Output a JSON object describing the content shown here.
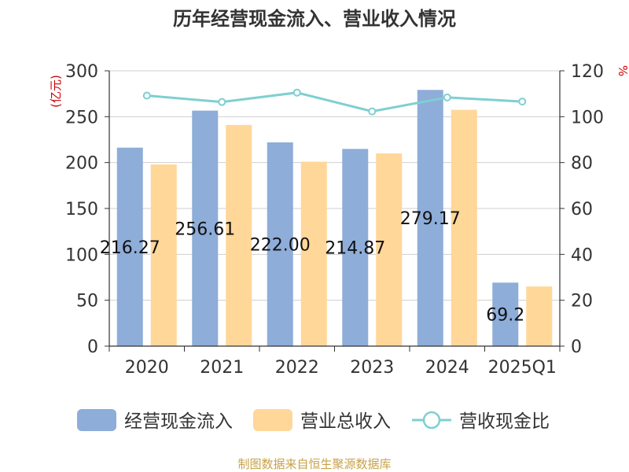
{
  "chart_data": {
    "type": "bar",
    "title": "历年经营现金流入、营业收入情况",
    "left_unit": "(亿元)",
    "right_unit": "%",
    "categories": [
      "2020",
      "2021",
      "2022",
      "2023",
      "2024",
      "2025Q1"
    ],
    "ylim": [
      0,
      300
    ],
    "yticks": [
      0,
      50,
      100,
      150,
      200,
      250,
      300
    ],
    "y2lim": [
      0,
      120
    ],
    "y2ticks": [
      0,
      20,
      40,
      60,
      80,
      100,
      120
    ],
    "grid": true,
    "legend_position": "bottom",
    "series": [
      {
        "name": "经营现金流入",
        "type": "bar",
        "axis": "left",
        "color": "#8eadd9",
        "values": [
          216.27,
          256.61,
          222.0,
          214.87,
          279.17,
          69.2
        ],
        "labels": [
          "216.27",
          "256.61",
          "222.00",
          "214.87",
          "279.17",
          "69.2"
        ]
      },
      {
        "name": "营业总收入",
        "type": "bar",
        "axis": "left",
        "color": "#ffd799",
        "values": [
          198,
          241,
          201,
          210,
          257.5,
          65
        ]
      },
      {
        "name": "营收现金比",
        "type": "line",
        "axis": "right",
        "color": "#7fcfd1",
        "values": [
          109.2,
          106.4,
          110.5,
          102.3,
          108.4,
          106.6
        ]
      }
    ],
    "source": "制图数据来自恒生聚源数据库"
  }
}
